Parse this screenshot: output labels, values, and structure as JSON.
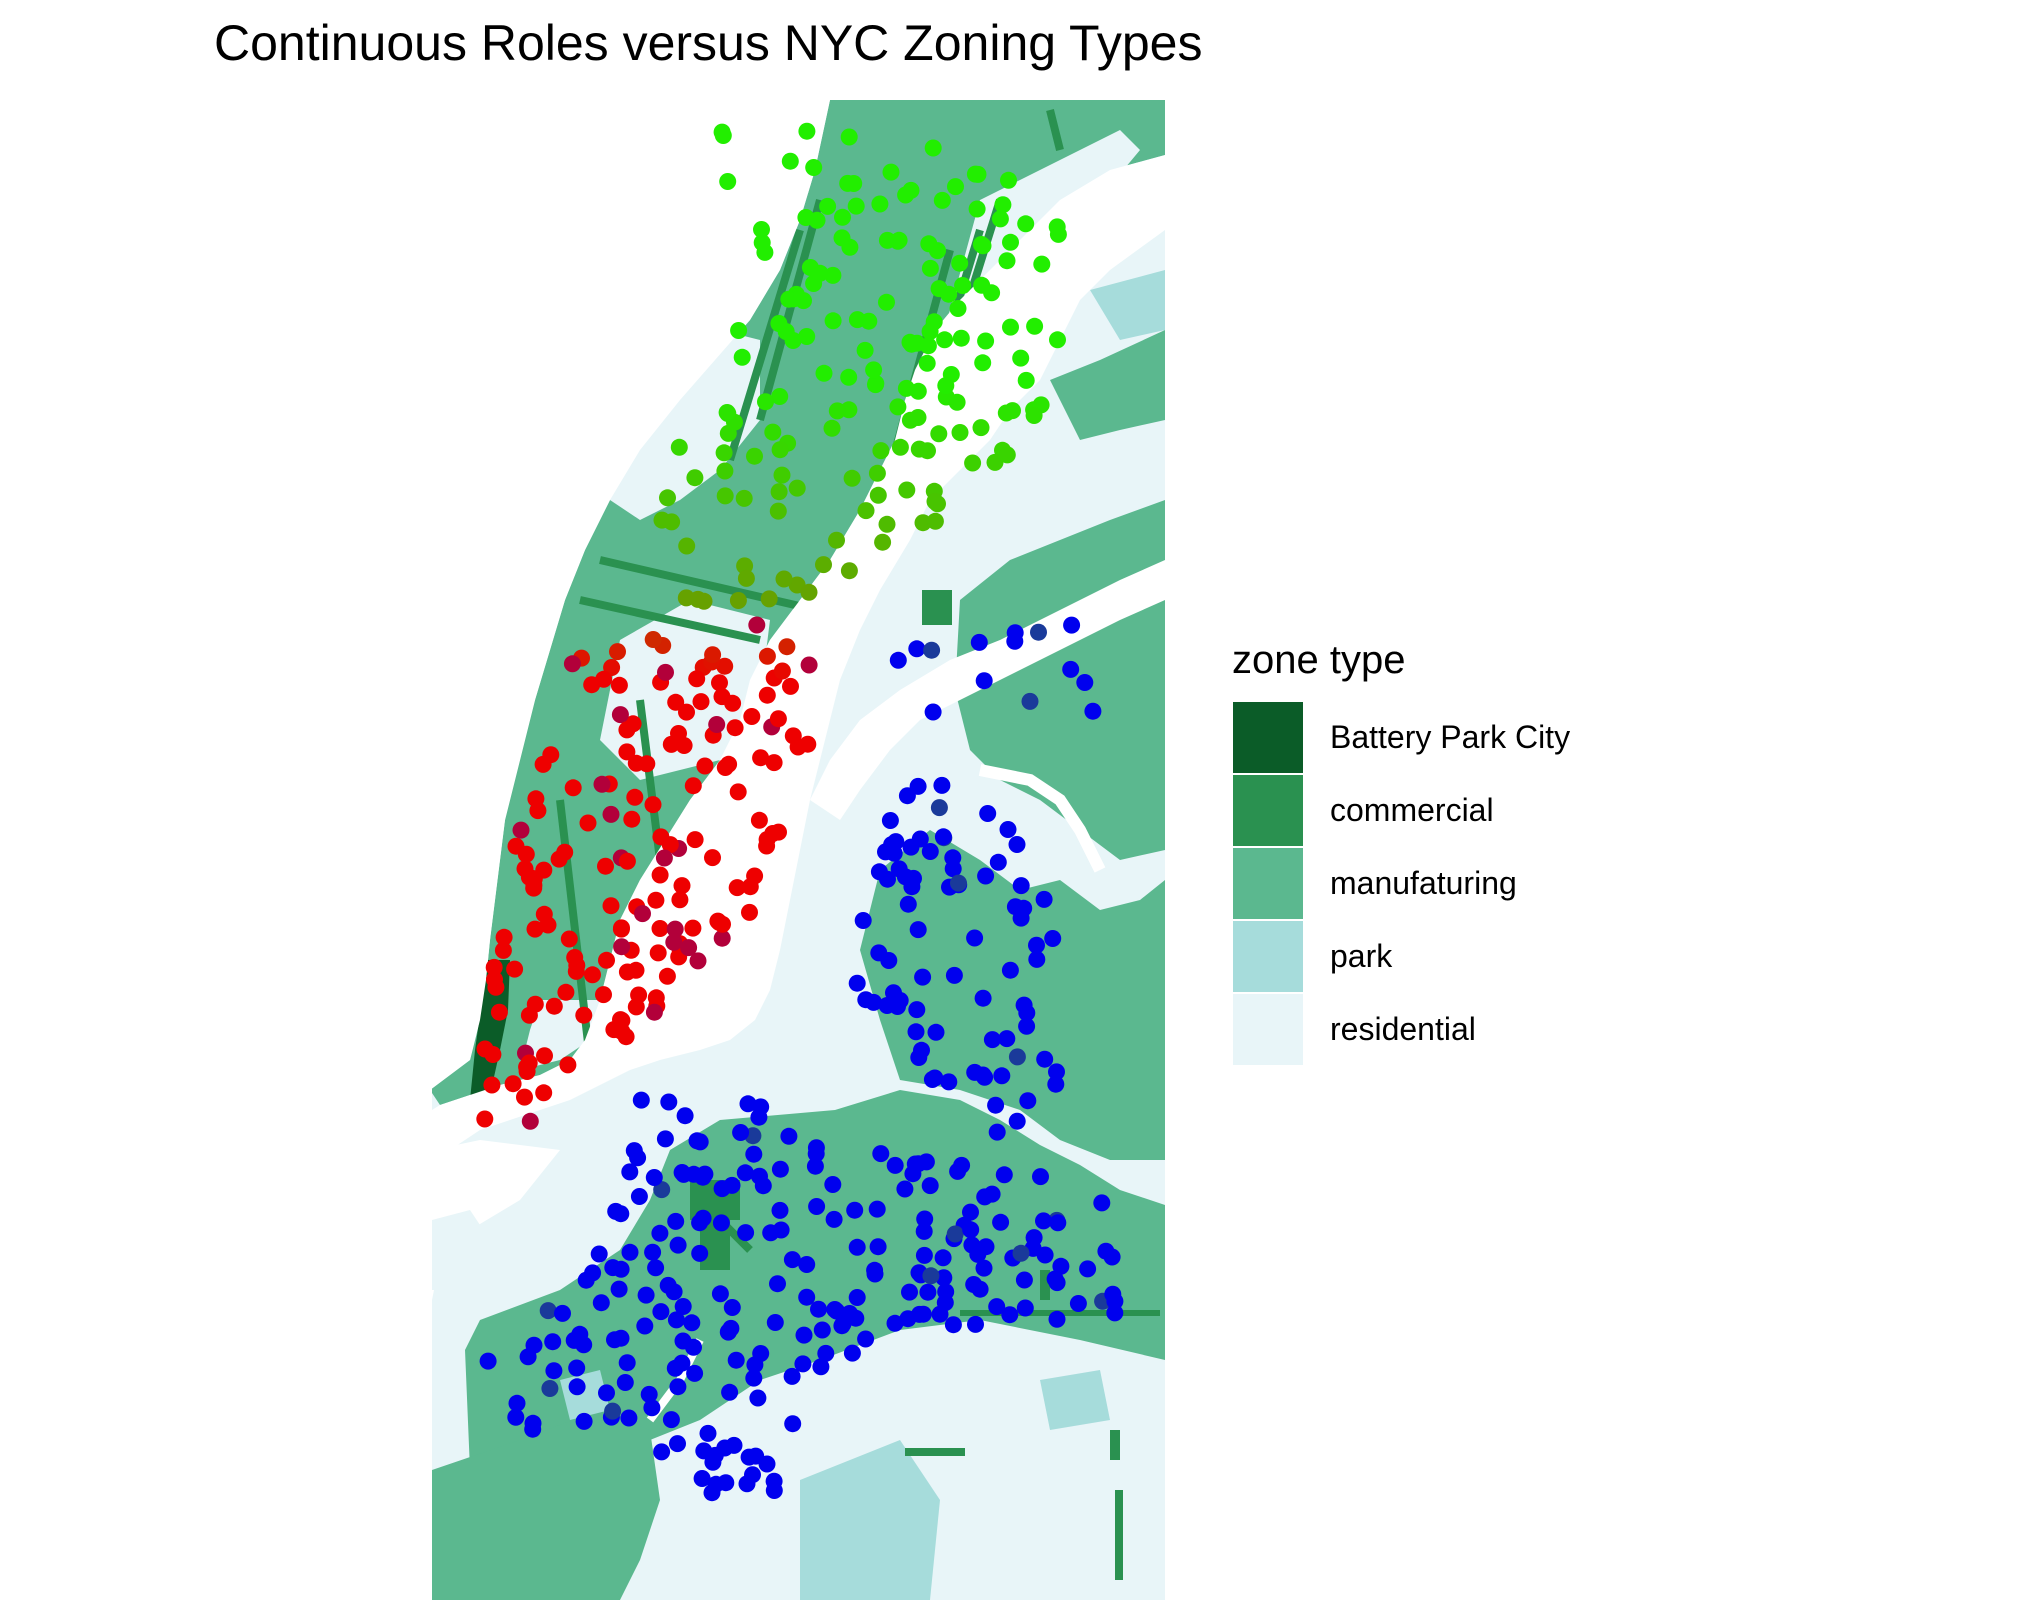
{
  "title": "Continuous Roles versus NYC Zoning Types",
  "legend": {
    "title": "zone type",
    "items": [
      {
        "label": "Battery Park City",
        "color": "#0b5c28"
      },
      {
        "label": "commercial",
        "color": "#2a9150"
      },
      {
        "label": "manufaturing",
        "color": "#5bb88f"
      },
      {
        "label": "park",
        "color": "#a6dcdb"
      },
      {
        "label": "residential",
        "color": "#e8f5f8"
      }
    ]
  },
  "colors": {
    "water": "#ffffff",
    "role_green": "#22ee00",
    "role_red": "#ee0000",
    "role_blue": "#0000ee"
  }
}
